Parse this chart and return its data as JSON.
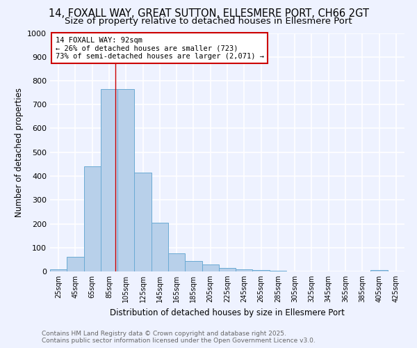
{
  "title_line1": "14, FOXALL WAY, GREAT SUTTON, ELLESMERE PORT, CH66 2GT",
  "title_line2": "Size of property relative to detached houses in Ellesmere Port",
  "xlabel": "Distribution of detached houses by size in Ellesmere Port",
  "ylabel": "Number of detached properties",
  "bar_values": [
    10,
    62,
    440,
    765,
    765,
    415,
    205,
    75,
    43,
    28,
    15,
    10,
    5,
    2,
    1,
    1,
    0,
    0,
    0,
    5
  ],
  "bin_edges": [
    15,
    35,
    55,
    75,
    95,
    115,
    135,
    155,
    175,
    195,
    215,
    235,
    255,
    275,
    295,
    315,
    335,
    355,
    375,
    395,
    415
  ],
  "bin_width": 20,
  "tick_positions": [
    25,
    45,
    65,
    85,
    105,
    125,
    145,
    165,
    185,
    205,
    225,
    245,
    265,
    285,
    305,
    325,
    345,
    365,
    385,
    405,
    425
  ],
  "tick_labels": [
    "25sqm",
    "45sqm",
    "65sqm",
    "85sqm",
    "105sqm",
    "125sqm",
    "145sqm",
    "165sqm",
    "185sqm",
    "205sqm",
    "225sqm",
    "245sqm",
    "265sqm",
    "285sqm",
    "305sqm",
    "325sqm",
    "345sqm",
    "365sqm",
    "385sqm",
    "405sqm",
    "425sqm"
  ],
  "bar_color": "#b8d0ea",
  "bar_edge_color": "#6aaad4",
  "property_line_x": 92,
  "property_line_color": "#cc0000",
  "annotation_line1": "14 FOXALL WAY: 92sqm",
  "annotation_line2": "← 26% of detached houses are smaller (723)",
  "annotation_line3": "73% of semi-detached houses are larger (2,071) →",
  "annotation_box_color": "#ffffff",
  "annotation_box_edge": "#cc0000",
  "ylim": [
    0,
    1000
  ],
  "yticks": [
    0,
    100,
    200,
    300,
    400,
    500,
    600,
    700,
    800,
    900,
    1000
  ],
  "xlim": [
    15,
    435
  ],
  "background_color": "#eef2ff",
  "grid_color": "#ffffff",
  "footer_text": "Contains HM Land Registry data © Crown copyright and database right 2025.\nContains public sector information licensed under the Open Government Licence v3.0.",
  "title_fontsize": 10.5,
  "subtitle_fontsize": 9.5,
  "axis_label_fontsize": 8.5,
  "tick_fontsize": 7,
  "annotation_fontsize": 7.5,
  "footer_fontsize": 6.5
}
